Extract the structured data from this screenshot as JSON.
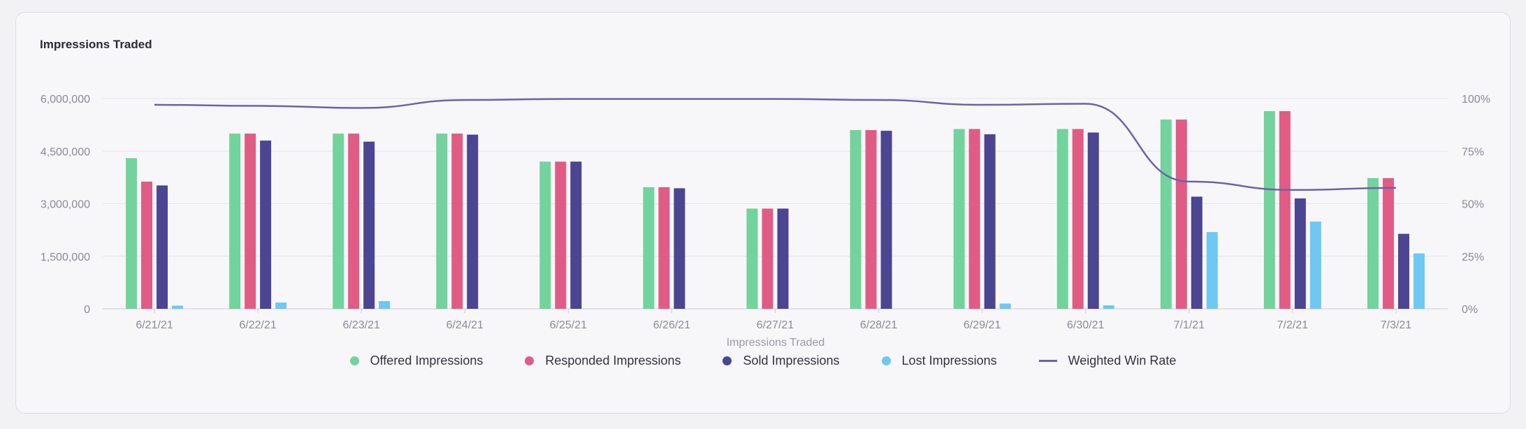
{
  "card": {
    "title": "Impressions Traded"
  },
  "chart_data": {
    "type": "bar",
    "title": "Impressions Traded",
    "xlabel": "Impressions Traded",
    "ylabel": "",
    "ylim": [
      0,
      6000000
    ],
    "y2lim": [
      0,
      100
    ],
    "y_ticks": [
      "0",
      "1,500,000",
      "3,000,000",
      "4,500,000",
      "6,000,000"
    ],
    "y_tick_values": [
      0,
      1500000,
      3000000,
      4500000,
      6000000
    ],
    "y2_ticks": [
      "0%",
      "25%",
      "50%",
      "75%",
      "100%"
    ],
    "y2_tick_values": [
      0,
      25,
      50,
      75,
      100
    ],
    "grid": true,
    "legend_position": "bottom",
    "categories": [
      "6/21/21",
      "6/22/21",
      "6/23/21",
      "6/24/21",
      "6/25/21",
      "6/26/21",
      "6/27/21",
      "6/28/21",
      "6/29/21",
      "6/30/21",
      "7/1/21",
      "7/2/21",
      "7/3/21"
    ],
    "series": [
      {
        "name": "Offered Impressions",
        "color": "#72d39c",
        "type": "bar",
        "values": [
          4300000,
          5000000,
          5000000,
          5000000,
          4200000,
          3470000,
          2860000,
          5100000,
          5130000,
          5130000,
          5400000,
          5640000,
          3730000
        ]
      },
      {
        "name": "Responded Impressions",
        "color": "#e05c85",
        "type": "bar",
        "values": [
          3630000,
          5000000,
          5000000,
          5000000,
          4200000,
          3470000,
          2860000,
          5100000,
          5130000,
          5130000,
          5400000,
          5640000,
          3730000
        ]
      },
      {
        "name": "Sold Impressions",
        "color": "#4b4592",
        "type": "bar",
        "values": [
          3520000,
          4800000,
          4770000,
          4970000,
          4200000,
          3440000,
          2860000,
          5080000,
          4980000,
          5030000,
          3200000,
          3150000,
          2140000
        ]
      },
      {
        "name": "Lost Impressions",
        "color": "#6ec8f2",
        "type": "bar",
        "values": [
          90000,
          180000,
          220000,
          0,
          0,
          0,
          0,
          0,
          150000,
          100000,
          2190000,
          2490000,
          1580000
        ]
      },
      {
        "name": "Weighted Win Rate",
        "color": "#6e62a8",
        "type": "line",
        "axis": "right",
        "values": [
          97,
          96.5,
          95.5,
          99.3,
          99.8,
          99.8,
          99.8,
          99.3,
          97,
          97.5,
          60.5,
          56.5,
          57.5
        ]
      }
    ]
  }
}
